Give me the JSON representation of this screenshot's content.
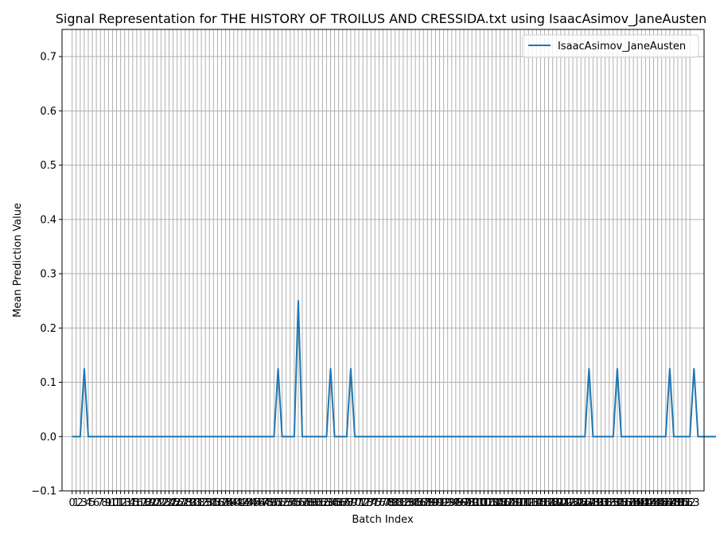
{
  "chart_data": {
    "type": "line",
    "title": "Signal Representation for THE HISTORY OF TROILUS AND CRESSIDA.txt using IsaacAsimov_JaneAusten",
    "xlabel": "Batch Index",
    "ylabel": "Mean Prediction Value",
    "ylim": [
      -0.1,
      0.75
    ],
    "xlim": [
      -2.5,
      156.5
    ],
    "yticks": [
      "−0.1",
      "0.0",
      "0.1",
      "0.2",
      "0.3",
      "0.4",
      "0.5",
      "0.6",
      "0.7"
    ],
    "ytick_values": [
      -0.1,
      0.0,
      0.1,
      0.2,
      0.3,
      0.4,
      0.5,
      0.6,
      0.7
    ],
    "x_count": 154,
    "grid": true,
    "legend_position": "upper-right",
    "series": [
      {
        "name": "IsaacAsimov_JaneAusten",
        "color": "#1f77b4",
        "values": [
          0,
          0,
          0,
          0.125,
          0,
          0,
          0,
          0,
          0,
          0,
          0,
          0,
          0,
          0,
          0,
          0,
          0,
          0,
          0,
          0,
          0,
          0,
          0,
          0,
          0,
          0,
          0,
          0,
          0,
          0,
          0,
          0,
          0,
          0,
          0,
          0,
          0,
          0,
          0,
          0,
          0,
          0,
          0,
          0,
          0,
          0,
          0,
          0,
          0,
          0,
          0,
          0.125,
          0,
          0,
          0,
          0,
          0.25,
          0,
          0,
          0,
          0,
          0,
          0,
          0,
          0.125,
          0,
          0,
          0,
          0,
          0.125,
          0,
          0,
          0,
          0,
          0,
          0,
          0,
          0,
          0,
          0,
          0,
          0,
          0,
          0,
          0,
          0,
          0,
          0,
          0,
          0,
          0,
          0,
          0,
          0,
          0,
          0,
          0,
          0,
          0,
          0,
          0,
          0,
          0,
          0,
          0,
          0,
          0,
          0,
          0,
          0,
          0,
          0,
          0,
          0,
          0,
          0,
          0,
          0,
          0,
          0,
          0,
          0,
          0,
          0,
          0,
          0,
          0,
          0,
          0.125,
          0,
          0,
          0,
          0,
          0,
          0,
          0.125,
          0,
          0,
          0,
          0,
          0,
          0,
          0,
          0,
          0,
          0,
          0,
          0,
          0.125,
          0,
          0,
          0,
          0,
          0,
          0.125,
          0,
          0,
          0,
          0,
          0,
          0,
          0
        ]
      }
    ]
  }
}
